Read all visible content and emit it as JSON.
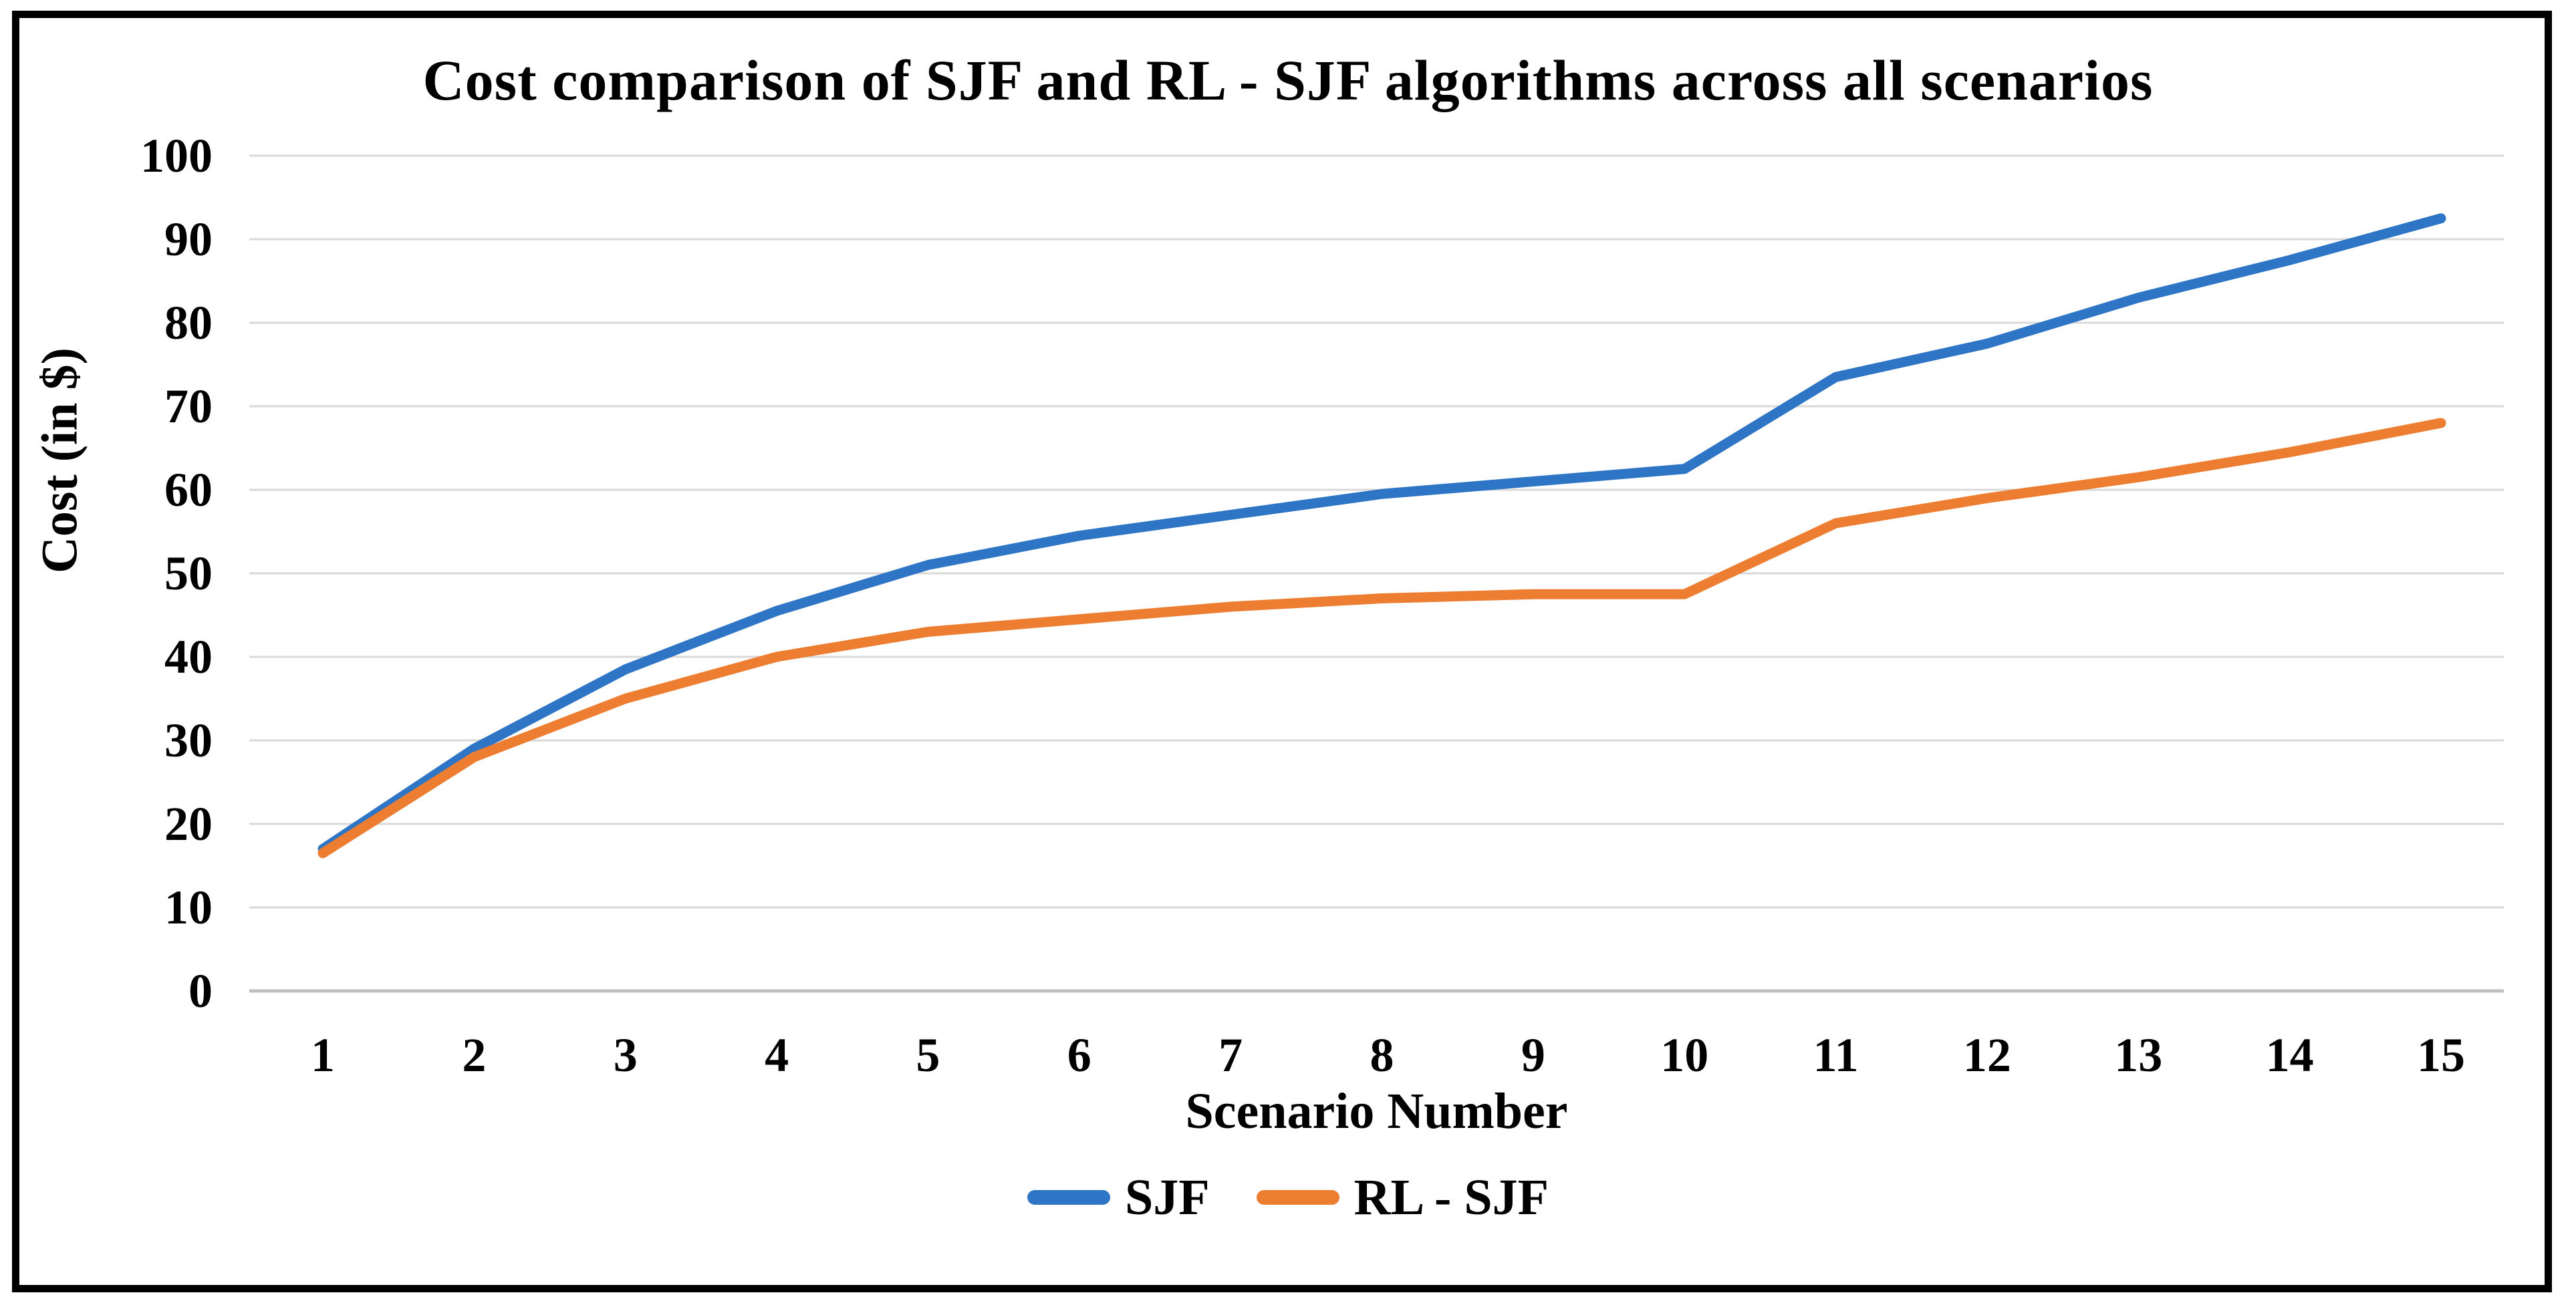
{
  "chart": {
    "title": "Cost comparison of SJF and RL - SJF algorithms across all scenarios"
  },
  "y_axis": {
    "title": "Cost (in $)",
    "ticks": [
      0,
      10,
      20,
      30,
      40,
      50,
      60,
      70,
      80,
      90,
      100
    ]
  },
  "x_axis": {
    "title": "Scenario Number",
    "ticks": [
      "1",
      "2",
      "3",
      "4",
      "5",
      "6",
      "7",
      "8",
      "9",
      "10",
      "11",
      "12",
      "13",
      "14",
      "15"
    ]
  },
  "legend": {
    "items": [
      {
        "label": "SJF",
        "color": "#2E75C6"
      },
      {
        "label": "RL - SJF",
        "color": "#ED7D31"
      }
    ]
  },
  "colors": {
    "series_blue": "#2E75C6",
    "series_orange": "#ED7D31",
    "gridline": "#D9D9D9",
    "axis_line": "#BFBFBF",
    "frame_border": "#000000",
    "background": "#FFFFFF",
    "text": "#000000"
  },
  "chart_data": {
    "type": "line",
    "title": "Cost comparison of SJF and RL - SJF algorithms across all scenarios",
    "xlabel": "Scenario Number",
    "ylabel": "Cost (in $)",
    "categories": [
      1,
      2,
      3,
      4,
      5,
      6,
      7,
      8,
      9,
      10,
      11,
      12,
      13,
      14,
      15
    ],
    "series": [
      {
        "name": "SJF",
        "color": "#2E75C6",
        "values": [
          17,
          29,
          38.5,
          45.5,
          51,
          54.5,
          57,
          59.5,
          61,
          62.5,
          73.5,
          77.5,
          83,
          87.5,
          92.5
        ]
      },
      {
        "name": "RL - SJF",
        "color": "#ED7D31",
        "values": [
          16.5,
          28,
          35,
          40,
          43,
          44.5,
          46,
          47,
          47.5,
          47.5,
          56,
          59,
          61.5,
          64.5,
          68
        ]
      }
    ],
    "ylim": [
      0,
      100
    ],
    "ytick_step": 10,
    "grid": true,
    "legend_position": "bottom-center"
  }
}
